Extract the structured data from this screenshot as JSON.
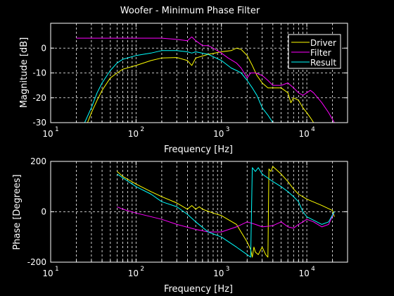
{
  "chart_data": [
    {
      "type": "line",
      "title": "Woofer - Minimum Phase Filter",
      "xlabel": "Frequency [Hz]",
      "ylabel": "Magnitude [dB]",
      "xscale": "log",
      "xlim": [
        10,
        30000
      ],
      "ylim": [
        -30,
        10
      ],
      "xticks": [
        10,
        100,
        1000,
        10000
      ],
      "xtick_labels": [
        {
          "base": "10",
          "exp": "1"
        },
        {
          "base": "10",
          "exp": "2"
        },
        {
          "base": "10",
          "exp": "3"
        },
        {
          "base": "10",
          "exp": "4"
        }
      ],
      "yticks": [
        -30,
        -20,
        -10,
        0
      ],
      "ytick_labels": [
        "-30",
        "-20",
        "-10",
        "0"
      ],
      "grid": true,
      "legend": "top-right",
      "series": [
        {
          "name": "Driver",
          "color": "#ffff00",
          "points": [
            [
              27,
              -30
            ],
            [
              30,
              -26
            ],
            [
              35,
              -21
            ],
            [
              40,
              -17
            ],
            [
              50,
              -12
            ],
            [
              60,
              -10
            ],
            [
              70,
              -8.5
            ],
            [
              100,
              -7
            ],
            [
              150,
              -5
            ],
            [
              200,
              -4
            ],
            [
              300,
              -3.8
            ],
            [
              400,
              -5
            ],
            [
              450,
              -7
            ],
            [
              500,
              -4
            ],
            [
              700,
              -2.5
            ],
            [
              1000,
              -1.5
            ],
            [
              1300,
              -1
            ],
            [
              1500,
              0
            ],
            [
              1700,
              -0.5
            ],
            [
              2000,
              -3
            ],
            [
              2300,
              -7
            ],
            [
              2600,
              -11
            ],
            [
              3000,
              -14
            ],
            [
              3500,
              -16
            ],
            [
              4000,
              -16
            ],
            [
              5000,
              -16
            ],
            [
              6000,
              -18
            ],
            [
              6500,
              -22
            ],
            [
              7000,
              -20
            ],
            [
              8000,
              -21
            ],
            [
              9000,
              -24
            ],
            [
              10000,
              -26
            ],
            [
              11000,
              -28
            ],
            [
              12000,
              -30
            ]
          ]
        },
        {
          "name": "Filter",
          "color": "#ff00ff",
          "points": [
            [
              20,
              4
            ],
            [
              100,
              4
            ],
            [
              200,
              4
            ],
            [
              300,
              3.5
            ],
            [
              400,
              3
            ],
            [
              450,
              4.5
            ],
            [
              500,
              3
            ],
            [
              600,
              1
            ],
            [
              700,
              1
            ],
            [
              800,
              0
            ],
            [
              1000,
              -2
            ],
            [
              1200,
              -4
            ],
            [
              1500,
              -6
            ],
            [
              1700,
              -8
            ],
            [
              2000,
              -12
            ],
            [
              2200,
              -10
            ],
            [
              2500,
              -10
            ],
            [
              3000,
              -11
            ],
            [
              3500,
              -13
            ],
            [
              4000,
              -15
            ],
            [
              5000,
              -15
            ],
            [
              6000,
              -14
            ],
            [
              7000,
              -16
            ],
            [
              8000,
              -18
            ],
            [
              9000,
              -19
            ],
            [
              10000,
              -18
            ],
            [
              11000,
              -17
            ],
            [
              12000,
              -18
            ],
            [
              15000,
              -22
            ],
            [
              18000,
              -26
            ],
            [
              21000,
              -30
            ]
          ]
        },
        {
          "name": "Result",
          "color": "#00ffff",
          "points": [
            [
              25,
              -30
            ],
            [
              30,
              -24
            ],
            [
              35,
              -18
            ],
            [
              40,
              -14
            ],
            [
              50,
              -9
            ],
            [
              60,
              -6
            ],
            [
              70,
              -4.5
            ],
            [
              100,
              -3
            ],
            [
              150,
              -2
            ],
            [
              200,
              -1
            ],
            [
              300,
              -1
            ],
            [
              400,
              -1.5
            ],
            [
              450,
              -2
            ],
            [
              500,
              -1.5
            ],
            [
              700,
              -2.5
            ],
            [
              1000,
              -5
            ],
            [
              1300,
              -8
            ],
            [
              1500,
              -9
            ],
            [
              1700,
              -10
            ],
            [
              2000,
              -13
            ],
            [
              2300,
              -16
            ],
            [
              2600,
              -19
            ],
            [
              3000,
              -24
            ],
            [
              3500,
              -27
            ],
            [
              4000,
              -30
            ]
          ]
        }
      ]
    },
    {
      "type": "line",
      "title": "",
      "xlabel": "Frequency [Hz]",
      "ylabel": "Phase [Degrees]",
      "xscale": "log",
      "xlim": [
        10,
        30000
      ],
      "ylim": [
        -200,
        200
      ],
      "xticks": [
        10,
        100,
        1000,
        10000
      ],
      "xtick_labels": [
        {
          "base": "10",
          "exp": "1"
        },
        {
          "base": "10",
          "exp": "2"
        },
        {
          "base": "10",
          "exp": "3"
        },
        {
          "base": "10",
          "exp": "4"
        }
      ],
      "yticks": [
        -200,
        0,
        200
      ],
      "ytick_labels": [
        "-200",
        "0",
        "200"
      ],
      "grid": true,
      "series": [
        {
          "name": "Driver",
          "color": "#ffff00",
          "points": [
            [
              60,
              160
            ],
            [
              70,
              140
            ],
            [
              100,
              110
            ],
            [
              150,
              80
            ],
            [
              200,
              60
            ],
            [
              300,
              35
            ],
            [
              400,
              10
            ],
            [
              450,
              25
            ],
            [
              500,
              10
            ],
            [
              550,
              20
            ],
            [
              600,
              10
            ],
            [
              800,
              -5
            ],
            [
              1000,
              -15
            ],
            [
              1500,
              -50
            ],
            [
              2000,
              -120
            ],
            [
              2200,
              -150
            ],
            [
              2300,
              -180
            ],
            [
              2400,
              -140
            ],
            [
              2500,
              -160
            ],
            [
              2700,
              -170
            ],
            [
              3000,
              -140
            ],
            [
              3300,
              -170
            ],
            [
              3500,
              -180
            ],
            [
              3600,
              170
            ],
            [
              3800,
              160
            ],
            [
              4000,
              180
            ],
            [
              5000,
              150
            ],
            [
              6000,
              120
            ],
            [
              7000,
              90
            ],
            [
              8000,
              70
            ],
            [
              10000,
              50
            ],
            [
              15000,
              25
            ],
            [
              20000,
              5
            ],
            [
              21000,
              -20
            ]
          ]
        },
        {
          "name": "Filter",
          "color": "#ff00ff",
          "points": [
            [
              60,
              20
            ],
            [
              70,
              10
            ],
            [
              100,
              -5
            ],
            [
              200,
              -30
            ],
            [
              300,
              -50
            ],
            [
              500,
              -70
            ],
            [
              700,
              -80
            ],
            [
              1000,
              -80
            ],
            [
              1500,
              -60
            ],
            [
              2000,
              -40
            ],
            [
              2500,
              -50
            ],
            [
              3000,
              -60
            ],
            [
              4000,
              -55
            ],
            [
              5000,
              -40
            ],
            [
              6000,
              -60
            ],
            [
              7000,
              -65
            ],
            [
              8000,
              -50
            ],
            [
              9000,
              -40
            ],
            [
              10000,
              -30
            ],
            [
              12000,
              -40
            ],
            [
              15000,
              -60
            ],
            [
              18000,
              -50
            ],
            [
              21000,
              0
            ]
          ]
        },
        {
          "name": "Result",
          "color": "#00ffff",
          "points": [
            [
              60,
              150
            ],
            [
              100,
              100
            ],
            [
              150,
              70
            ],
            [
              200,
              40
            ],
            [
              300,
              20
            ],
            [
              400,
              -10
            ],
            [
              500,
              -40
            ],
            [
              700,
              -80
            ],
            [
              1000,
              -100
            ],
            [
              1500,
              -140
            ],
            [
              2000,
              -170
            ],
            [
              2200,
              -180
            ],
            [
              2300,
              175
            ],
            [
              2500,
              160
            ],
            [
              2700,
              175
            ],
            [
              3000,
              150
            ],
            [
              4000,
              120
            ],
            [
              5000,
              100
            ],
            [
              6000,
              80
            ],
            [
              7000,
              60
            ],
            [
              8000,
              40
            ],
            [
              9000,
              0
            ],
            [
              10000,
              -20
            ],
            [
              15000,
              -50
            ],
            [
              18000,
              -40
            ],
            [
              21000,
              0
            ]
          ]
        }
      ]
    }
  ]
}
